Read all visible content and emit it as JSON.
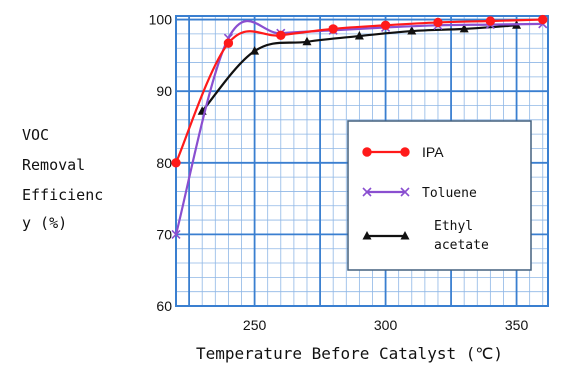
{
  "chart_data": {
    "type": "line",
    "xlabel": "Temperature Before Catalyst (℃)",
    "ylabel_lines": [
      "VOC",
      "Removal",
      "Efficienc",
      "y (%)"
    ],
    "xlim": [
      220,
      362
    ],
    "ylim": [
      60,
      100.5
    ],
    "xticks": [
      250,
      300,
      350
    ],
    "yticks": [
      60,
      70,
      80,
      90,
      100
    ],
    "grid": true,
    "legend_position": "center-right",
    "series": [
      {
        "name": "IPA",
        "color": "#ff1a1a",
        "marker": "circle",
        "x": [
          220,
          240,
          260,
          280,
          300,
          320,
          340,
          360
        ],
        "y": [
          80,
          96.7,
          97.8,
          98.7,
          99.2,
          99.6,
          99.8,
          100
        ]
      },
      {
        "name": "Toluene",
        "color": "#8a4fd0",
        "marker": "x",
        "x": [
          220,
          240,
          260,
          280,
          300,
          320,
          340,
          360
        ],
        "y": [
          70,
          97.4,
          98.1,
          98.5,
          98.9,
          99.2,
          99.3,
          99.4
        ]
      },
      {
        "name": "Ethyl acetate",
        "name_lines": [
          "Ethyl",
          "acetate"
        ],
        "color": "#111111",
        "marker": "triangle",
        "x": [
          230,
          250,
          270,
          290,
          310,
          330,
          350
        ],
        "y": [
          87.2,
          95.6,
          96.9,
          97.7,
          98.4,
          98.7,
          99.2
        ]
      }
    ]
  }
}
